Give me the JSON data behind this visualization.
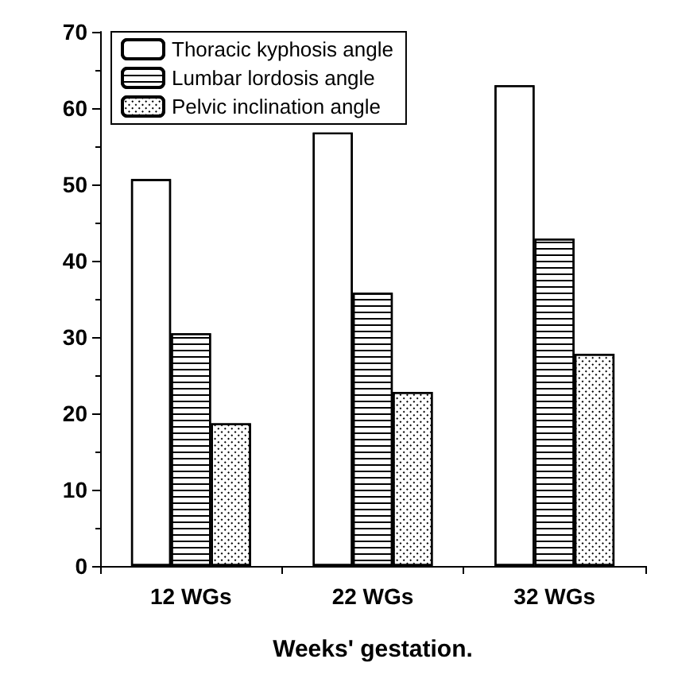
{
  "chart_data": {
    "type": "bar",
    "xlabel": "Weeks' gestation.",
    "categories": [
      "12 WGs",
      "22 WGs",
      "32 WGs"
    ],
    "series": [
      {
        "name": "Thoracic kyphosis angle",
        "color": "#ffffff",
        "values": [
          50.7,
          56.8,
          63
        ]
      },
      {
        "name": "Lumbar lordosis angle",
        "color": "#ffffff",
        "values": [
          30.5,
          35.8,
          42.9
        ]
      },
      {
        "name": "Pelvic inclination angle",
        "color": "#ffffff",
        "values": [
          18.7,
          22.8,
          27.8
        ]
      }
    ],
    "ylim": [
      0,
      70
    ],
    "yticks": [
      0,
      10,
      20,
      30,
      40,
      50,
      60,
      70
    ],
    "grid": false,
    "legend": "top left"
  }
}
